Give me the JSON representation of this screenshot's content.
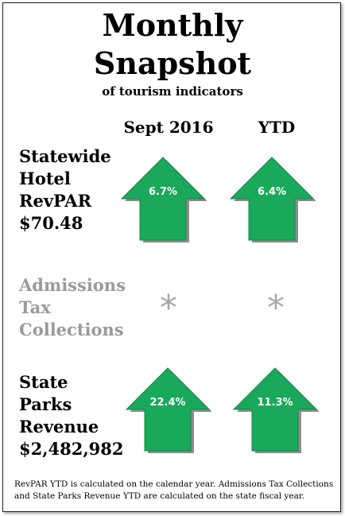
{
  "title_line1": "Monthly",
  "title_line2": "Snapshot",
  "subtitle": "of tourism indicators",
  "columns": {
    "month": "Sept 2016",
    "ytd": "YTD"
  },
  "indicators": [
    {
      "label_lines": [
        "Statewide",
        "Hotel",
        "RevPAR",
        "$70.48"
      ],
      "month_change": "6.7%",
      "ytd_change": "6.4%",
      "direction": "up"
    },
    {
      "label_lines": [
        "Admissions",
        "Tax",
        "Collections"
      ],
      "month_value": "*",
      "ytd_value": "*",
      "label_color": "#9a9a9a"
    },
    {
      "label_lines": [
        "State",
        "Parks",
        "Revenue",
        "$2,482,982"
      ],
      "month_change": "22.4%",
      "ytd_change": "11.3%",
      "direction": "up"
    }
  ],
  "colors": {
    "arrow_fill": "#1aa85a",
    "arrow_shadow": "#8c8c8c",
    "muted": "#a6a6a6"
  },
  "icons": {
    "up": "up-arrow-icon",
    "na": "asterisk-icon"
  },
  "footnote": "RevPAR YTD is calculated on the calendar year. Admissions Tax Collections and State Parks Revenue YTD are calculated on the state fiscal year."
}
